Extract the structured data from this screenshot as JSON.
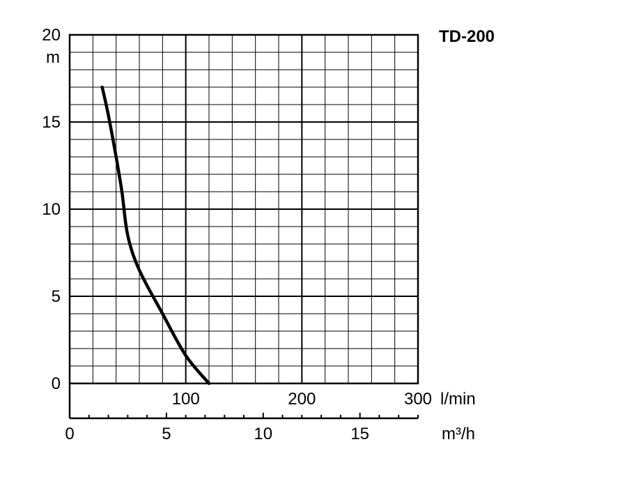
{
  "chart_data": {
    "type": "line",
    "title": "TD-200",
    "ylabel": "m",
    "x_primary_unit": "l/min",
    "x_secondary_unit": "m³/h",
    "ylim": [
      0,
      20
    ],
    "xlim_lmin": [
      0,
      300
    ],
    "xlim_m3h": [
      0,
      18
    ],
    "y_ticks": [
      "0",
      "5",
      "10",
      "15",
      "20"
    ],
    "x_primary_ticks": [
      "100",
      "200",
      "300"
    ],
    "x_secondary_ticks": [
      "0",
      "5",
      "10",
      "15"
    ],
    "grid": true,
    "series": [
      {
        "x_lmin": [
          28,
          33,
          40,
          45,
          50,
          60,
          80,
          100,
          120
        ],
        "y": [
          17,
          15.5,
          13,
          11,
          8.5,
          6.5,
          4,
          1.6,
          0
        ]
      }
    ]
  }
}
